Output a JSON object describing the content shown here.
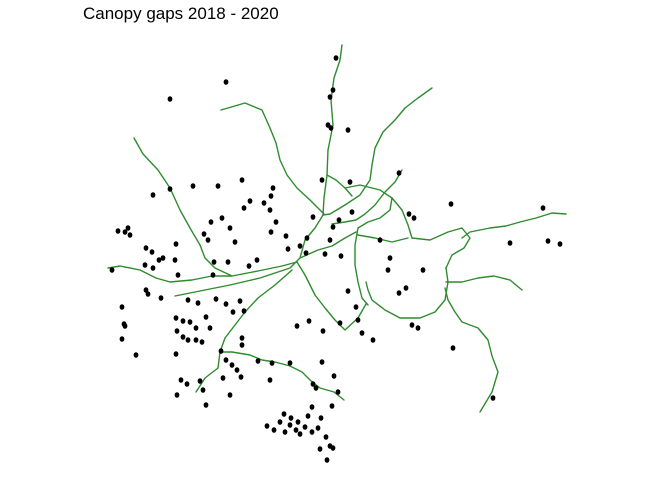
{
  "title": "Canopy gaps 2018 - 2020",
  "colors": {
    "paths": "#2e8b2e",
    "gaps": "#000000",
    "background": "#ffffff"
  },
  "layers": {
    "paths": "path-network",
    "gaps": "canopy-gap"
  }
}
